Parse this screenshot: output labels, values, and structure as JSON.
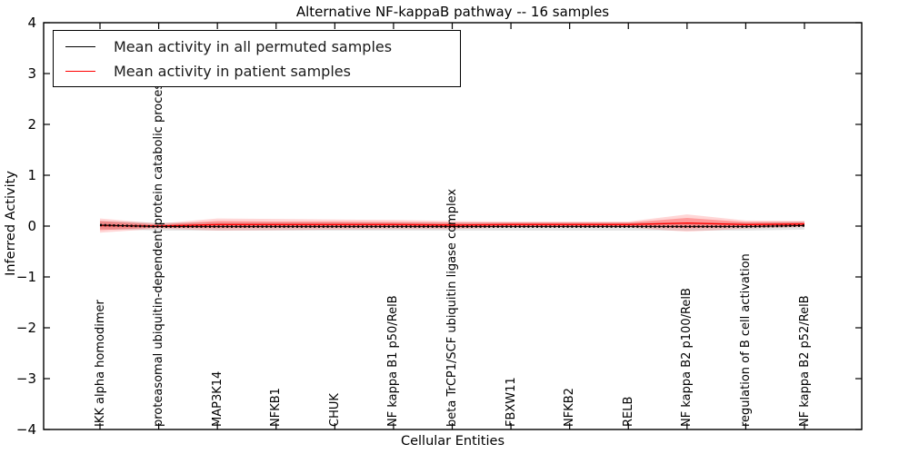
{
  "figure": {
    "title": "Alternative NF-kappaB pathway -- 16 samples",
    "xlabel": "Cellular Entities",
    "ylabel": "Inferred Activity"
  },
  "chart_data": {
    "type": "line",
    "title": "Alternative NF-kappaB pathway -- 16 samples",
    "xlabel": "Cellular Entities",
    "ylabel": "Inferred Activity",
    "ylim": [
      -4,
      4
    ],
    "yticks": [
      -4,
      -3,
      -2,
      -1,
      0,
      1,
      2,
      3,
      4
    ],
    "grid": false,
    "legend_position": "upper left",
    "categories": [
      "IKK alpha homodimer",
      "proteasomal ubiquitin-dependent protein catabolic process",
      "MAP3K14",
      "NFKB1",
      "CHUK",
      "NF kappa B1 p50/RelB",
      "beta TrCP1/SCF ubiquitin ligase complex",
      "FBXW11",
      "NFKB2",
      "RELB",
      "NF kappa B2 p100/RelB",
      "regulation of B cell activation",
      "NF kappa B2 p52/RelB"
    ],
    "series": [
      {
        "name": "Mean activity in all permuted samples",
        "color": "#000000",
        "line_style": "dotted-markers",
        "values": [
          0.02,
          -0.01,
          -0.01,
          -0.01,
          -0.01,
          -0.01,
          -0.01,
          -0.01,
          -0.01,
          -0.01,
          -0.01,
          -0.01,
          0.01
        ],
        "band_halfwidth": [
          0.08,
          0.08,
          0.08,
          0.08,
          0.08,
          0.08,
          0.08,
          0.08,
          0.08,
          0.08,
          0.08,
          0.08,
          0.08
        ],
        "band_color": "#000000",
        "band_opacity": 0.1
      },
      {
        "name": "Mean activity in patient samples",
        "color": "#ff0000",
        "line_style": "solid",
        "values": [
          0.01,
          0.0,
          0.03,
          0.03,
          0.03,
          0.03,
          0.02,
          0.03,
          0.03,
          0.03,
          0.06,
          0.03,
          0.04
        ],
        "band_inner_halfwidth": [
          0.09,
          0.03,
          0.07,
          0.06,
          0.06,
          0.05,
          0.05,
          0.04,
          0.04,
          0.04,
          0.1,
          0.05,
          0.04
        ],
        "band_outer_halfwidth": [
          0.14,
          0.05,
          0.12,
          0.11,
          0.1,
          0.09,
          0.08,
          0.06,
          0.06,
          0.06,
          0.17,
          0.08,
          0.06
        ],
        "band_color": "#ff0000",
        "band_opacity_inner": 0.28,
        "band_opacity_outer": 0.16
      }
    ]
  }
}
